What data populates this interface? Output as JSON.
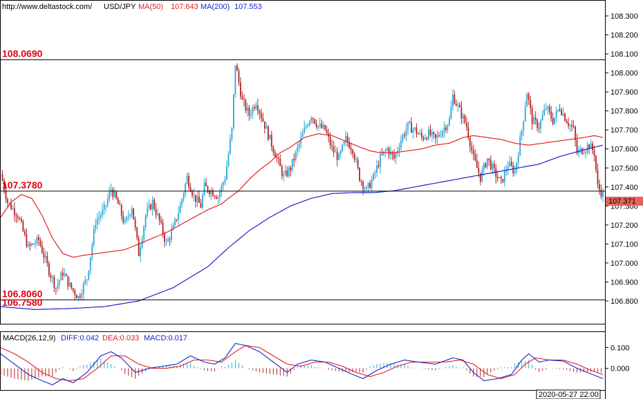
{
  "header": {
    "url": "http://www.deltastock.com/",
    "symbol": "USD/JPY",
    "ma50_label": "MA(50)",
    "ma50_value": "107.643",
    "ma200_label": "MA(200)",
    "ma200_value": "107.553"
  },
  "colors": {
    "up": "#2aa7d6",
    "down": "#b22222",
    "ma50": "#e32020",
    "ma200": "#1a23c9",
    "level_text": "#e3000f",
    "price_tag": "#e8645a"
  },
  "current_price_tag": "107.371",
  "macd_header": {
    "title": "MACD(26,12,9)",
    "diff": "DIFF:0.042",
    "dea": "DEA:0.033",
    "macd": "MACD:0.017"
  },
  "date_label": "2020-05-27 22:00",
  "chart_data": [
    {
      "type": "candlestick",
      "title": "USD/JPY",
      "ylim": [
        106.68,
        108.38
      ],
      "yticks": [
        "108.300",
        "108.200",
        "108.100",
        "108.000",
        "107.900",
        "107.800",
        "107.700",
        "107.600",
        "107.500",
        "107.400",
        "107.300",
        "107.200",
        "107.100",
        "107.000",
        "106.900",
        "106.800"
      ],
      "levels": [
        {
          "value": 108.069,
          "label": "108.0690"
        },
        {
          "value": 107.378,
          "label": "107.3780"
        },
        {
          "value": 106.806,
          "label": "106.8060"
        },
        {
          "value": 106.76,
          "label": "106.7580"
        }
      ],
      "price_path": [
        [
          0,
          107.47
        ],
        [
          4,
          107.32
        ],
        [
          10,
          107.25
        ],
        [
          16,
          107.08
        ],
        [
          22,
          107.12
        ],
        [
          28,
          106.96
        ],
        [
          32,
          106.87
        ],
        [
          36,
          106.95
        ],
        [
          40,
          106.88
        ],
        [
          45,
          106.82
        ],
        [
          50,
          106.92
        ],
        [
          55,
          107.22
        ],
        [
          60,
          107.28
        ],
        [
          64,
          107.39
        ],
        [
          68,
          107.31
        ],
        [
          72,
          107.2
        ],
        [
          76,
          107.3
        ],
        [
          80,
          107.05
        ],
        [
          84,
          107.25
        ],
        [
          88,
          107.32
        ],
        [
          92,
          107.22
        ],
        [
          96,
          107.1
        ],
        [
          100,
          107.18
        ],
        [
          104,
          107.3
        ],
        [
          108,
          107.45
        ],
        [
          112,
          107.35
        ],
        [
          116,
          107.3
        ],
        [
          118,
          107.4
        ],
        [
          122,
          107.38
        ],
        [
          126,
          107.35
        ],
        [
          130,
          107.45
        ],
        [
          134,
          107.7
        ],
        [
          136,
          108.05
        ],
        [
          140,
          107.85
        ],
        [
          144,
          107.78
        ],
        [
          148,
          107.85
        ],
        [
          152,
          107.75
        ],
        [
          156,
          107.65
        ],
        [
          160,
          107.55
        ],
        [
          164,
          107.45
        ],
        [
          168,
          107.5
        ],
        [
          172,
          107.6
        ],
        [
          176,
          107.7
        ],
        [
          180,
          107.78
        ],
        [
          184,
          107.72
        ],
        [
          188,
          107.7
        ],
        [
          192,
          107.6
        ],
        [
          196,
          107.55
        ],
        [
          200,
          107.65
        ],
        [
          204,
          107.6
        ],
        [
          208,
          107.45
        ],
        [
          212,
          107.38
        ],
        [
          216,
          107.45
        ],
        [
          220,
          107.55
        ],
        [
          224,
          107.6
        ],
        [
          228,
          107.55
        ],
        [
          232,
          107.65
        ],
        [
          236,
          107.72
        ],
        [
          240,
          107.7
        ],
        [
          244,
          107.66
        ],
        [
          248,
          107.68
        ],
        [
          252,
          107.65
        ],
        [
          256,
          107.7
        ],
        [
          260,
          107.75
        ],
        [
          262,
          107.88
        ],
        [
          266,
          107.8
        ],
        [
          270,
          107.72
        ],
        [
          274,
          107.55
        ],
        [
          278,
          107.45
        ],
        [
          282,
          107.55
        ],
        [
          286,
          107.48
        ],
        [
          290,
          107.42
        ],
        [
          294,
          107.52
        ],
        [
          298,
          107.48
        ],
        [
          302,
          107.7
        ],
        [
          305,
          107.9
        ],
        [
          308,
          107.75
        ],
        [
          312,
          107.72
        ],
        [
          316,
          107.82
        ],
        [
          320,
          107.75
        ],
        [
          324,
          107.82
        ],
        [
          328,
          107.75
        ],
        [
          332,
          107.7
        ],
        [
          334,
          107.58
        ],
        [
          338,
          107.6
        ],
        [
          341,
          107.62
        ],
        [
          344,
          107.58
        ],
        [
          346,
          107.4
        ],
        [
          349,
          107.36
        ]
      ],
      "ma50": [
        [
          0,
          107.24
        ],
        [
          6,
          107.32
        ],
        [
          12,
          107.36
        ],
        [
          18,
          107.34
        ],
        [
          24,
          107.25
        ],
        [
          30,
          107.13
        ],
        [
          36,
          107.05
        ],
        [
          42,
          107.03
        ],
        [
          48,
          107.04
        ],
        [
          56,
          107.05
        ],
        [
          64,
          107.06
        ],
        [
          72,
          107.07
        ],
        [
          80,
          107.1
        ],
        [
          88,
          107.13
        ],
        [
          96,
          107.16
        ],
        [
          104,
          107.2
        ],
        [
          112,
          107.24
        ],
        [
          120,
          107.28
        ],
        [
          128,
          107.31
        ],
        [
          132,
          107.34
        ],
        [
          138,
          107.38
        ],
        [
          144,
          107.44
        ],
        [
          150,
          107.49
        ],
        [
          156,
          107.53
        ],
        [
          162,
          107.58
        ],
        [
          168,
          107.61
        ],
        [
          176,
          107.66
        ],
        [
          184,
          107.68
        ],
        [
          192,
          107.67
        ],
        [
          200,
          107.64
        ],
        [
          208,
          107.61
        ],
        [
          214,
          107.59
        ],
        [
          220,
          107.58
        ],
        [
          228,
          107.58
        ],
        [
          236,
          107.59
        ],
        [
          244,
          107.6
        ],
        [
          252,
          107.62
        ],
        [
          260,
          107.63
        ],
        [
          268,
          107.66
        ],
        [
          274,
          107.67
        ],
        [
          282,
          107.66
        ],
        [
          290,
          107.65
        ],
        [
          298,
          107.63
        ],
        [
          306,
          107.62
        ],
        [
          314,
          107.63
        ],
        [
          322,
          107.64
        ],
        [
          330,
          107.65
        ],
        [
          338,
          107.66
        ],
        [
          344,
          107.67
        ],
        [
          349,
          107.66
        ]
      ],
      "ma200": [
        [
          0,
          106.77
        ],
        [
          20,
          106.755
        ],
        [
          40,
          106.76
        ],
        [
          60,
          106.77
        ],
        [
          80,
          106.8
        ],
        [
          100,
          106.87
        ],
        [
          120,
          106.98
        ],
        [
          132,
          107.08
        ],
        [
          144,
          107.17
        ],
        [
          156,
          107.24
        ],
        [
          168,
          107.3
        ],
        [
          180,
          107.34
        ],
        [
          192,
          107.365
        ],
        [
          204,
          107.37
        ],
        [
          216,
          107.37
        ],
        [
          228,
          107.38
        ],
        [
          240,
          107.4
        ],
        [
          252,
          107.42
        ],
        [
          264,
          107.44
        ],
        [
          276,
          107.46
        ],
        [
          288,
          107.48
        ],
        [
          300,
          107.5
        ],
        [
          312,
          107.52
        ],
        [
          324,
          107.56
        ],
        [
          336,
          107.59
        ],
        [
          349,
          107.62
        ]
      ]
    },
    {
      "type": "bar+line",
      "title": "MACD(26,12,9)",
      "ylim": [
        -0.105,
        0.175
      ],
      "yticks": [
        "0.100",
        "0.000"
      ],
      "diff": [
        [
          0,
          0.07
        ],
        [
          8,
          0.02
        ],
        [
          16,
          -0.03
        ],
        [
          24,
          -0.06
        ],
        [
          30,
          -0.08
        ],
        [
          36,
          -0.05
        ],
        [
          42,
          -0.07
        ],
        [
          50,
          -0.02
        ],
        [
          58,
          0.06
        ],
        [
          64,
          0.08
        ],
        [
          70,
          0.05
        ],
        [
          78,
          -0.02
        ],
        [
          86,
          0.0
        ],
        [
          94,
          0.01
        ],
        [
          102,
          0.02
        ],
        [
          110,
          0.06
        ],
        [
          118,
          0.03
        ],
        [
          124,
          0.02
        ],
        [
          130,
          0.05
        ],
        [
          136,
          0.12
        ],
        [
          142,
          0.11
        ],
        [
          150,
          0.08
        ],
        [
          158,
          0.03
        ],
        [
          166,
          -0.02
        ],
        [
          172,
          0.02
        ],
        [
          180,
          0.04
        ],
        [
          188,
          0.03
        ],
        [
          196,
          0.0
        ],
        [
          204,
          -0.03
        ],
        [
          210,
          -0.05
        ],
        [
          218,
          -0.01
        ],
        [
          226,
          0.02
        ],
        [
          234,
          0.04
        ],
        [
          242,
          0.03
        ],
        [
          252,
          0.02
        ],
        [
          262,
          0.05
        ],
        [
          268,
          0.04
        ],
        [
          274,
          -0.02
        ],
        [
          280,
          -0.06
        ],
        [
          288,
          -0.05
        ],
        [
          296,
          -0.03
        ],
        [
          302,
          0.04
        ],
        [
          306,
          0.07
        ],
        [
          312,
          0.03
        ],
        [
          318,
          0.04
        ],
        [
          326,
          0.035
        ],
        [
          334,
          0.0
        ],
        [
          340,
          -0.02
        ],
        [
          349,
          -0.05
        ]
      ],
      "dea": [
        [
          0,
          0.1
        ],
        [
          8,
          0.07
        ],
        [
          16,
          0.03
        ],
        [
          24,
          -0.02
        ],
        [
          32,
          -0.05
        ],
        [
          40,
          -0.06
        ],
        [
          48,
          -0.05
        ],
        [
          56,
          0.0
        ],
        [
          64,
          0.06
        ],
        [
          72,
          0.06
        ],
        [
          80,
          0.02
        ],
        [
          88,
          0.0
        ],
        [
          96,
          0.0
        ],
        [
          104,
          0.01
        ],
        [
          112,
          0.04
        ],
        [
          120,
          0.04
        ],
        [
          128,
          0.03
        ],
        [
          136,
          0.08
        ],
        [
          142,
          0.11
        ],
        [
          150,
          0.1
        ],
        [
          158,
          0.06
        ],
        [
          166,
          0.02
        ],
        [
          174,
          0.01
        ],
        [
          182,
          0.03
        ],
        [
          190,
          0.03
        ],
        [
          198,
          0.01
        ],
        [
          206,
          -0.02
        ],
        [
          214,
          -0.04
        ],
        [
          222,
          -0.02
        ],
        [
          230,
          0.01
        ],
        [
          238,
          0.03
        ],
        [
          248,
          0.03
        ],
        [
          258,
          0.03
        ],
        [
          266,
          0.04
        ],
        [
          274,
          0.02
        ],
        [
          282,
          -0.03
        ],
        [
          290,
          -0.05
        ],
        [
          298,
          -0.03
        ],
        [
          304,
          0.02
        ],
        [
          310,
          0.05
        ],
        [
          318,
          0.04
        ],
        [
          326,
          0.04
        ],
        [
          334,
          0.02
        ],
        [
          342,
          -0.01
        ],
        [
          349,
          -0.03
        ]
      ]
    }
  ]
}
